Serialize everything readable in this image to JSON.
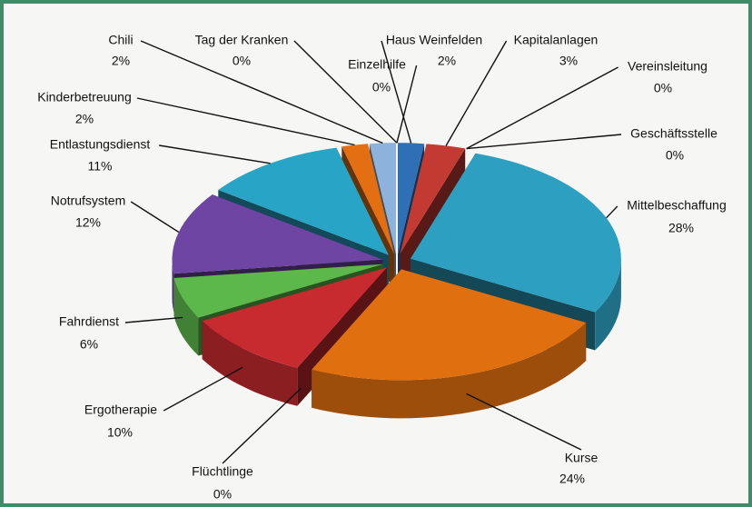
{
  "chart_data": {
    "type": "pie3d",
    "categories": [
      "Haus Weinfelden",
      "Kapitalanlagen",
      "Vereinsleitung",
      "Geschäftsstelle",
      "Mittelbeschaffung",
      "Kurse",
      "Flüchtlinge",
      "Ergotherapie",
      "Fahrdienst",
      "Notrufsystem",
      "Entlastungsdienst",
      "Kinderbetreuung",
      "Chili",
      "Tag der Kranken",
      "Einzelhilfe"
    ],
    "values": [
      2,
      3,
      0,
      0,
      28,
      24,
      0,
      10,
      6,
      12,
      11,
      2,
      2,
      0,
      0
    ],
    "value_labels": [
      "2%",
      "3%",
      "0%",
      "0%",
      "28%",
      "24%",
      "0%",
      "10%",
      "6%",
      "12%",
      "11%",
      "2%",
      "2%",
      "0%",
      "0%"
    ],
    "colors": [
      "#2f6fb5",
      "#c23a32",
      "#6b3f98",
      "#8aa84a",
      "#2d9fc0",
      "#e0700f",
      "#2f6fb5",
      "#c72b2f",
      "#5db84b",
      "#6e45a3",
      "#28a4c6",
      "#e36f12",
      "#8db2dc",
      "#c9c9c9",
      "#9ab57a"
    ]
  }
}
